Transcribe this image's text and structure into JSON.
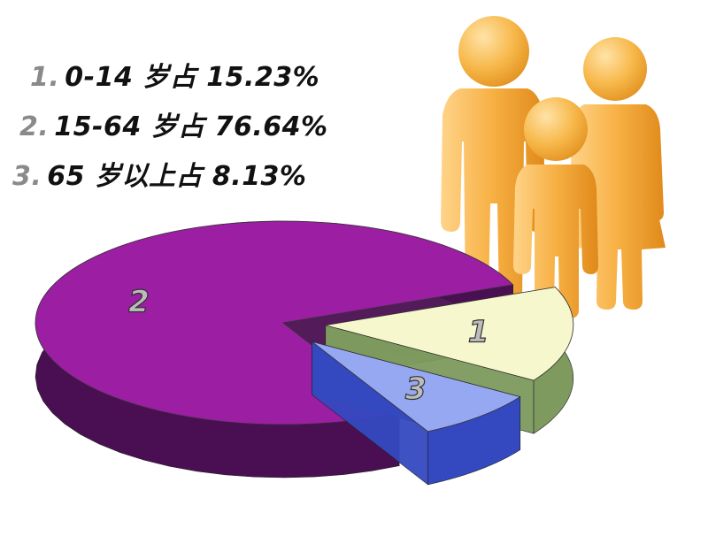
{
  "chart_data": {
    "type": "pie",
    "labels": [
      "1",
      "2",
      "3"
    ],
    "values": [
      15.23,
      76.64,
      8.13
    ],
    "legend": [
      {
        "num": "1.",
        "text": "0-14 岁占 15.23%"
      },
      {
        "num": "2.",
        "text": "15-64 岁占 76.64%"
      },
      {
        "num": "3.",
        "text": "65 岁以上占 8.13%"
      }
    ],
    "colors": {
      "1": {
        "top": "#f6f7cc",
        "side": "#7e9a5e"
      },
      "2": {
        "top": "#9b1ea3",
        "side": "#4a0f52"
      },
      "3": {
        "top": "#97a8f2",
        "side": "#3449c0"
      }
    },
    "legend_placement": "top-left",
    "style": "3d-exploded-pie"
  },
  "illustration": {
    "icon": "family-figures-icon",
    "color": "#f4a623"
  }
}
